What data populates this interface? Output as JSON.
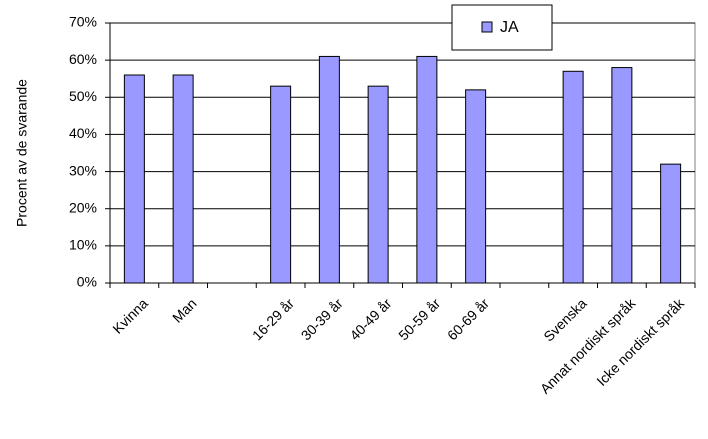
{
  "chart_data": {
    "type": "bar",
    "ylabel": "Procent av de svarande",
    "categories": [
      "Kvinna",
      "Man",
      null,
      "16-29 år",
      "30-39 år",
      "40-49 år",
      "50-59 år",
      "60-69 år",
      null,
      "Svenska",
      "Annat nordiskt språk",
      "Icke nordiskt språk"
    ],
    "series": [
      {
        "name": "JA",
        "color": "#9999ff",
        "values": [
          56,
          56,
          null,
          53,
          61,
          53,
          61,
          52,
          null,
          57,
          58,
          32
        ]
      }
    ],
    "ylim": [
      0,
      70
    ],
    "yticks": [
      {
        "value": 0,
        "label": "0%"
      },
      {
        "value": 10,
        "label": "10%"
      },
      {
        "value": 20,
        "label": "20%"
      },
      {
        "value": 30,
        "label": "30%"
      },
      {
        "value": 40,
        "label": "40%"
      },
      {
        "value": 50,
        "label": "50%"
      },
      {
        "value": 60,
        "label": "60%"
      },
      {
        "value": 70,
        "label": "70%"
      }
    ],
    "grid": true,
    "legend": "top-right"
  }
}
